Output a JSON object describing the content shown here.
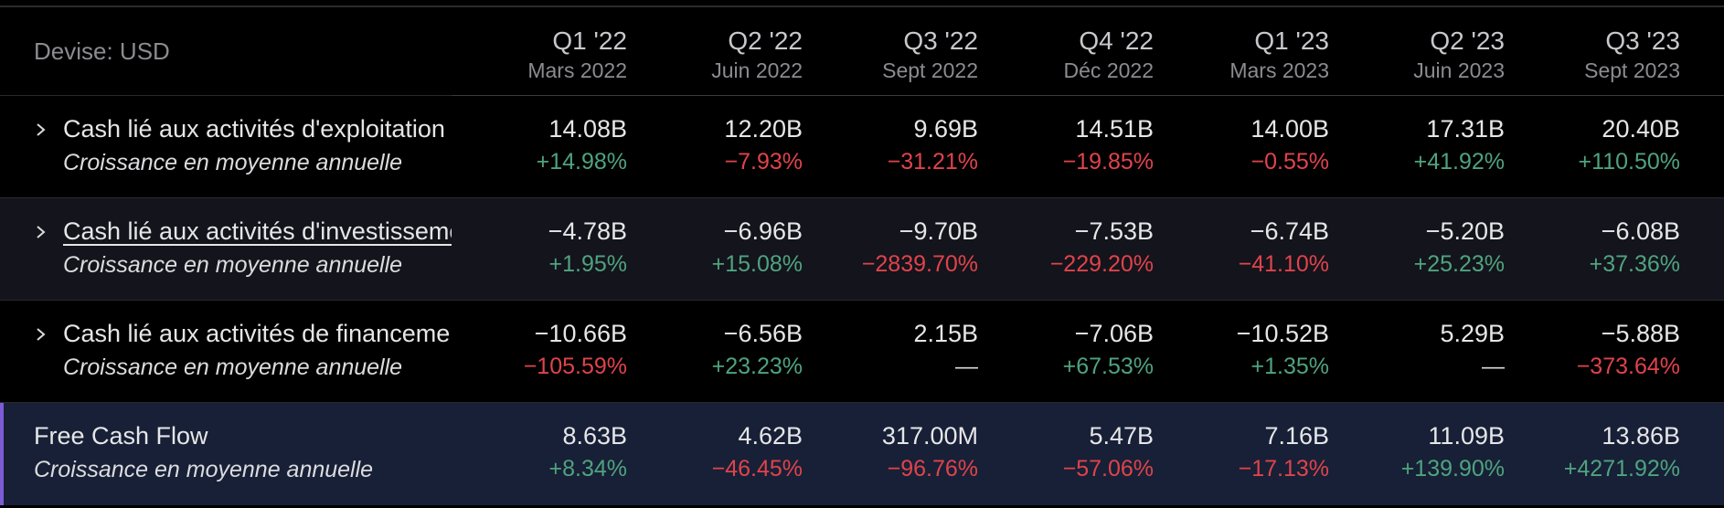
{
  "header": {
    "currency_label": "Devise: USD",
    "periods": [
      {
        "quarter": "Q1 '22",
        "date": "Mars 2022"
      },
      {
        "quarter": "Q2 '22",
        "date": "Juin 2022"
      },
      {
        "quarter": "Q3 '22",
        "date": "Sept 2022"
      },
      {
        "quarter": "Q4 '22",
        "date": "Déc 2022"
      },
      {
        "quarter": "Q1 '23",
        "date": "Mars 2023"
      },
      {
        "quarter": "Q2 '23",
        "date": "Juin 2023"
      },
      {
        "quarter": "Q3 '23",
        "date": "Sept 2023"
      }
    ]
  },
  "rows": [
    {
      "label": "Cash lié aux activités d'exploitation",
      "sublabel": "Croissance en moyenne annuelle",
      "values": [
        "14.08B",
        "12.20B",
        "9.69B",
        "14.51B",
        "14.00B",
        "17.31B",
        "20.40B"
      ],
      "growth": [
        "+14.98%",
        "−7.93%",
        "−31.21%",
        "−19.85%",
        "−0.55%",
        "+41.92%",
        "+110.50%"
      ]
    },
    {
      "label": "Cash lié aux activités d'investissement",
      "sublabel": "Croissance en moyenne annuelle",
      "values": [
        "−4.78B",
        "−6.96B",
        "−9.70B",
        "−7.53B",
        "−6.74B",
        "−5.20B",
        "−6.08B"
      ],
      "growth": [
        "+1.95%",
        "+15.08%",
        "−2839.70%",
        "−229.20%",
        "−41.10%",
        "+25.23%",
        "+37.36%"
      ]
    },
    {
      "label": "Cash lié aux activités de financement",
      "sublabel": "Croissance en moyenne annuelle",
      "values": [
        "−10.66B",
        "−6.56B",
        "2.15B",
        "−7.06B",
        "−10.52B",
        "5.29B",
        "−5.88B"
      ],
      "growth": [
        "−105.59%",
        "+23.23%",
        "—",
        "+67.53%",
        "+1.35%",
        "—",
        "−373.64%"
      ]
    },
    {
      "label": "Free Cash Flow",
      "sublabel": "Croissance en moyenne annuelle",
      "values": [
        "8.63B",
        "4.62B",
        "317.00M",
        "5.47B",
        "7.16B",
        "11.09B",
        "13.86B"
      ],
      "growth": [
        "+8.34%",
        "−46.45%",
        "−96.76%",
        "−57.06%",
        "−17.13%",
        "+139.90%",
        "+4271.92%"
      ]
    }
  ],
  "colors": {
    "positive": "#4fa37f",
    "negative": "#e0434b",
    "highlight_row": "#172036",
    "accent": "#7b5bd6"
  },
  "icons": {
    "expand": "chevron-right-icon"
  }
}
